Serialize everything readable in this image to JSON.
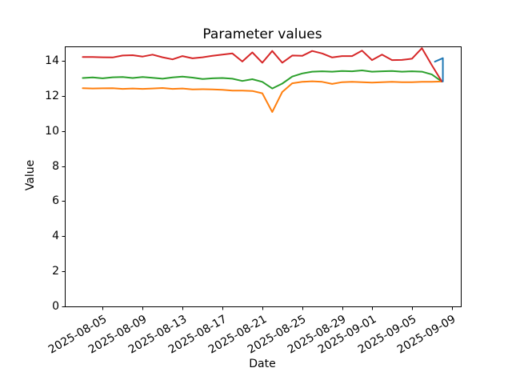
{
  "chart_data": {
    "type": "line",
    "title": "Parameter values",
    "xlabel": "Date",
    "ylabel": "Value",
    "grid": false,
    "legend": null,
    "background_color": "#ffffff",
    "axis_color": "#000000",
    "x_axis": {
      "unit": "days",
      "start_date": "2025-08-03",
      "tick_labels": [
        "2025-08-05",
        "2025-08-09",
        "2025-08-13",
        "2025-08-17",
        "2025-08-21",
        "2025-08-25",
        "2025-08-29",
        "2025-09-01",
        "2025-09-05",
        "2025-09-09"
      ],
      "tick_day_offsets": [
        2,
        6,
        10,
        14,
        18,
        22,
        26,
        29,
        33,
        37
      ],
      "xlim_days": [
        -1.8,
        37.9
      ],
      "tick_rotation_deg": 30
    },
    "y_axis": {
      "tick_labels": [
        "0",
        "2",
        "4",
        "6",
        "8",
        "10",
        "12",
        "14"
      ],
      "tick_values": [
        0,
        2,
        4,
        6,
        8,
        10,
        12,
        14
      ],
      "ylim": [
        0,
        14.82
      ]
    },
    "series": [
      {
        "name": "green",
        "color": "#2ca02c",
        "start_date": "2025-08-03",
        "daily_values": [
          13.02,
          13.05,
          13.0,
          13.06,
          13.08,
          13.02,
          13.08,
          13.03,
          12.98,
          13.05,
          13.1,
          13.04,
          12.96,
          13.0,
          13.02,
          12.98,
          12.85,
          12.95,
          12.8,
          12.42,
          12.7,
          13.1,
          13.28,
          13.38,
          13.4,
          13.38,
          13.42,
          13.4,
          13.45,
          13.38,
          13.4,
          13.42,
          13.38,
          13.4,
          13.38,
          13.22,
          12.82
        ]
      },
      {
        "name": "orange",
        "color": "#ff7f0e",
        "start_date": "2025-08-03",
        "daily_values": [
          12.44,
          12.42,
          12.43,
          12.44,
          12.4,
          12.42,
          12.4,
          12.42,
          12.45,
          12.4,
          12.42,
          12.37,
          12.38,
          12.37,
          12.35,
          12.3,
          12.3,
          12.28,
          12.15,
          11.08,
          12.22,
          12.72,
          12.8,
          12.83,
          12.8,
          12.68,
          12.78,
          12.8,
          12.78,
          12.76,
          12.78,
          12.8,
          12.78,
          12.78,
          12.8,
          12.8,
          12.82
        ]
      },
      {
        "name": "red",
        "color": "#d62728",
        "start_date": "2025-08-03",
        "daily_values": [
          14.22,
          14.22,
          14.2,
          14.19,
          14.3,
          14.32,
          14.24,
          14.35,
          14.2,
          14.08,
          14.27,
          14.14,
          14.2,
          14.28,
          14.35,
          14.42,
          13.96,
          14.48,
          13.89,
          14.56,
          13.89,
          14.3,
          14.28,
          14.56,
          14.42,
          14.19,
          14.27,
          14.27,
          14.58,
          14.04,
          14.35,
          14.04,
          14.05,
          14.12,
          14.72,
          13.75,
          12.82
        ]
      },
      {
        "name": "blue",
        "color": "#1f77b4",
        "points_day_value": [
          [
            35.3,
            13.95
          ],
          [
            36.1,
            14.15
          ],
          [
            36.1,
            12.82
          ]
        ]
      }
    ]
  }
}
